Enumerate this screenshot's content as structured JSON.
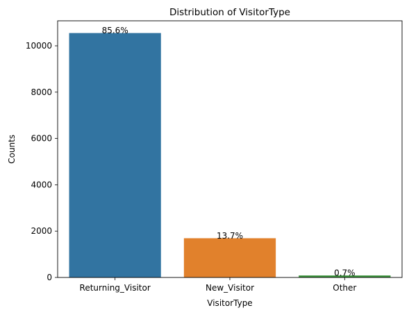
{
  "chart_data": {
    "type": "bar",
    "title": "Distribution of VisitorType",
    "xlabel": "VisitorType",
    "ylabel": "Counts",
    "categories": [
      "Returning_Visitor",
      "New_Visitor",
      "Other"
    ],
    "values": [
      10551,
      1694,
      85
    ],
    "data_labels": [
      "85.6%",
      "13.7%",
      "0.7%"
    ],
    "colors": [
      "#3274a1",
      "#e1812c",
      "#3a923a"
    ],
    "ylim": [
      0,
      11079
    ],
    "yticks": [
      0,
      2000,
      4000,
      6000,
      8000,
      10000
    ],
    "grid": false,
    "legend": "none"
  }
}
